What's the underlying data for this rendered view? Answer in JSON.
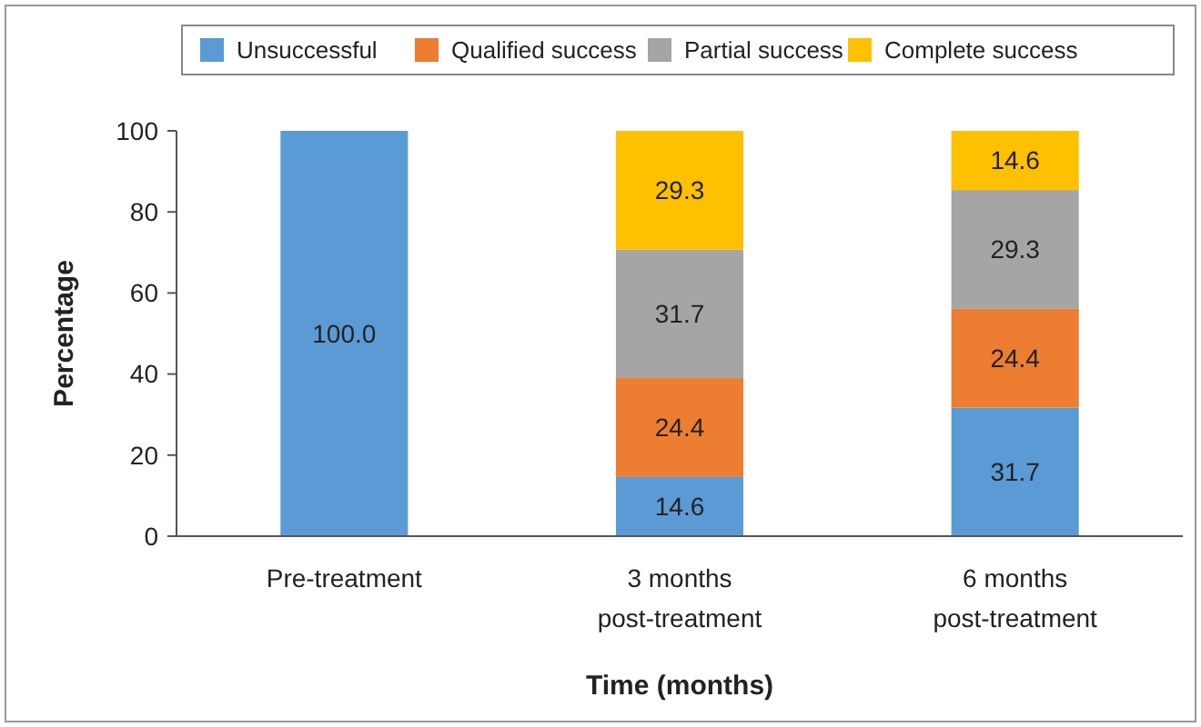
{
  "chart_data": {
    "type": "bar",
    "stacked": true,
    "xlabel": "Time (months)",
    "ylabel": "Percentage",
    "categories": [
      "Pre-treatment",
      "3 months post-treatment",
      "6 months post-treatment"
    ],
    "series": [
      {
        "name": "Unsuccessful",
        "color": "#5b9bd5",
        "values": [
          100,
          14.6,
          31.7
        ],
        "value_labels": [
          "100.0",
          "14.6",
          "31.7"
        ]
      },
      {
        "name": "Qualified success",
        "color": "#ed7d31",
        "values": [
          0,
          24.4,
          24.4
        ],
        "value_labels": [
          null,
          "24.4",
          "24.4"
        ]
      },
      {
        "name": "Partial success",
        "color": "#a5a5a5",
        "values": [
          0,
          31.7,
          29.3
        ],
        "value_labels": [
          null,
          "31.7",
          "29.3"
        ]
      },
      {
        "name": "Complete success",
        "color": "#ffc000",
        "values": [
          0,
          29.3,
          14.6
        ],
        "value_labels": [
          null,
          "29.3",
          "14.6"
        ]
      }
    ],
    "ylim": [
      0,
      100
    ],
    "yticks": [
      0,
      20,
      40,
      60,
      80,
      100
    ],
    "legend": "top",
    "grid": false
  }
}
